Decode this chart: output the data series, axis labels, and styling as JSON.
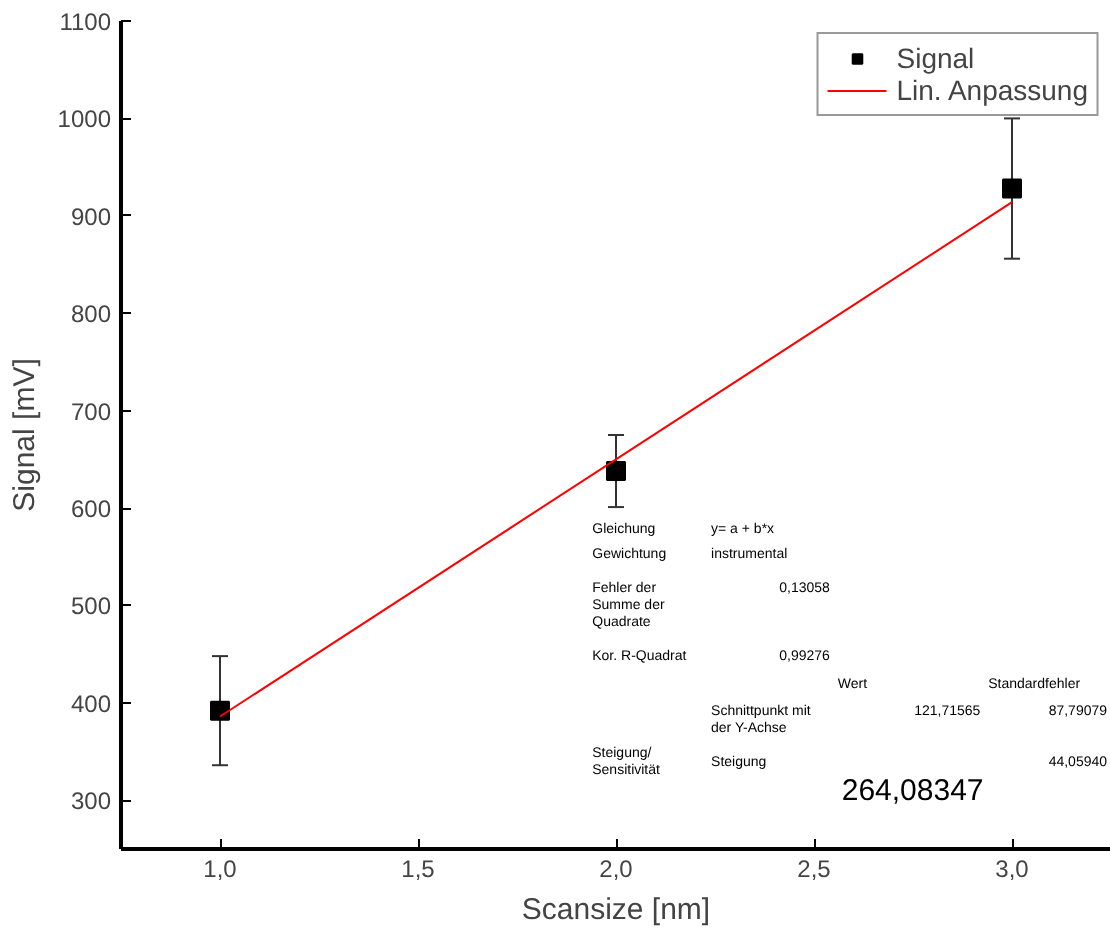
{
  "chart_data": {
    "type": "scatter",
    "xlabel": "Scansize [nm]",
    "ylabel": "Signal [mV]",
    "xlim": [
      0.75,
      3.25
    ],
    "ylim": [
      250,
      1100
    ],
    "xticks": [
      {
        "value": 1.0,
        "label": "1,0"
      },
      {
        "value": 1.5,
        "label": "1,5"
      },
      {
        "value": 2.0,
        "label": "2,0"
      },
      {
        "value": 2.5,
        "label": "2,5"
      },
      {
        "value": 3.0,
        "label": "3,0"
      }
    ],
    "yticks": [
      300,
      400,
      500,
      600,
      700,
      800,
      900,
      1000,
      1100
    ],
    "grid": false,
    "legend": "top right",
    "series": [
      {
        "name": "Signal",
        "marker": "square",
        "color": "#000000",
        "x": [
          1.0,
          2.0,
          3.0
        ],
        "values": [
          392,
          638,
          928
        ],
        "errors": [
          56,
          37,
          72
        ]
      },
      {
        "name": "Lin. Anpassung",
        "type": "line",
        "color": "#ff0000",
        "x": [
          1.0,
          3.0
        ],
        "values": [
          386,
          914
        ]
      }
    ],
    "annotations": [
      "Gleichung",
      "y= a + b*x",
      "Gewichtung",
      "instrumental",
      "Fehler der Summe der Quadrate",
      "0,13058",
      "Kor. R-Quadrat",
      "0,99276",
      "Wert",
      "Standardfehler",
      "Steigung/ Sensitivität",
      "Schnittpunkt mit der Y-Achse",
      "121,71565",
      "87,79079",
      "Steigung",
      "264,08347",
      "44,05940"
    ]
  }
}
